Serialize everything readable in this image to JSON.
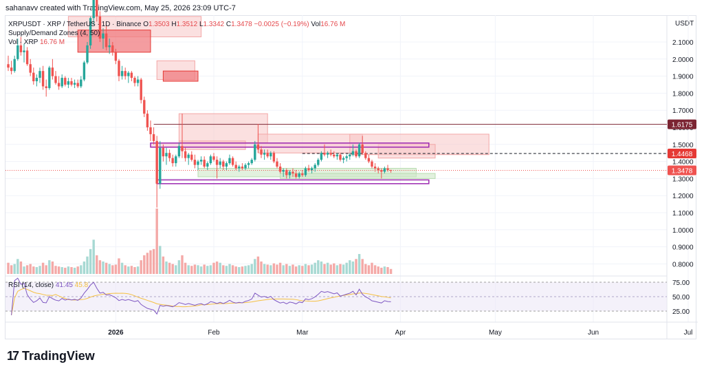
{
  "header": {
    "text": "sahanavv created with TradingView.com, May 25, 2026 23:09 UTC-7"
  },
  "legend": {
    "symbol": "XRPUSDT · XRP / TetherUS · 1D · Binance",
    "o_label": "O",
    "o": "1.3503",
    "h_label": "H",
    "h": "1.3512",
    "l_label": "L",
    "l": "1.3342",
    "c_label": "C",
    "c": "1.3478",
    "change": "−0.0025 (−0.19%)",
    "vol_label": "Vol",
    "vol": "16.76 M",
    "indicator": "Supply/Demand Zones (4, 50)",
    "vol_series": "Vol · XRP",
    "vol_series_value": "16.76 M"
  },
  "rsi_legend": {
    "label": "RSI (14, close)",
    "value": "41.45",
    "ma_value": "45.8"
  },
  "logo": {
    "text": "TradingView",
    "mark": "17"
  },
  "colors": {
    "up": "#26a69a",
    "down": "#ef5350",
    "vol_up": "#a7d9d3",
    "vol_down": "#f4a9a7",
    "rsi": "#7e57c2",
    "rsi_ma": "#f5c042",
    "supply": "#f7c7c7",
    "supply_strong": "#f07c80",
    "demand": "#cfe8c8",
    "zone_line": "#9c27b0"
  },
  "chart_data": {
    "type": "candlestick",
    "currency": "USDT",
    "price_axis": [
      2.1,
      2.0,
      1.9,
      1.8,
      1.7,
      1.6,
      1.5,
      1.4,
      1.3,
      1.2,
      1.1,
      1.0,
      0.9,
      0.8
    ],
    "price_labels": [
      "2.1000",
      "2.0000",
      "1.9000",
      "1.8000",
      "1.7000",
      "1.6000",
      "1.5000",
      "1.4000",
      "1.3000",
      "1.2000",
      "1.1000",
      "1.0000",
      "0.9000",
      "0.8000"
    ],
    "price_tags": [
      {
        "label": "1.6175",
        "value": 1.6175,
        "color": "#7b2432"
      },
      {
        "label": "1.4468",
        "value": 1.4468,
        "color": "#e53935"
      },
      {
        "label": "1.3478",
        "value": 1.3478,
        "color": "#ef5350"
      }
    ],
    "time_axis": [
      {
        "label": "2026",
        "bold": true,
        "index": 34
      },
      {
        "label": "Feb",
        "index": 65
      },
      {
        "label": "Mar",
        "index": 93
      },
      {
        "label": "Apr",
        "index": 124
      },
      {
        "label": "May",
        "index": 154
      },
      {
        "label": "Jun",
        "index": 185
      },
      {
        "label": "Jul",
        "index": 215
      }
    ],
    "ohlc": [
      [
        1.97,
        2.02,
        1.93,
        1.95
      ],
      [
        1.95,
        1.99,
        1.91,
        1.93
      ],
      [
        1.93,
        2.02,
        1.92,
        2.0
      ],
      [
        2.0,
        2.12,
        1.99,
        2.08
      ],
      [
        2.08,
        2.13,
        2.02,
        2.04
      ],
      [
        2.04,
        2.09,
        1.98,
        2.05
      ],
      [
        2.05,
        2.07,
        1.96,
        1.97
      ],
      [
        1.97,
        2.0,
        1.9,
        1.92
      ],
      [
        1.92,
        1.95,
        1.85,
        1.87
      ],
      [
        1.87,
        1.91,
        1.84,
        1.89
      ],
      [
        1.89,
        1.95,
        1.86,
        1.93
      ],
      [
        1.93,
        1.96,
        1.82,
        1.84
      ],
      [
        1.84,
        1.88,
        1.78,
        1.83
      ],
      [
        1.83,
        1.96,
        1.82,
        1.95
      ],
      [
        1.95,
        2.0,
        1.88,
        1.9
      ],
      [
        1.9,
        1.93,
        1.85,
        1.86
      ],
      [
        1.86,
        1.9,
        1.82,
        1.84
      ],
      [
        1.84,
        1.91,
        1.83,
        1.89
      ],
      [
        1.89,
        1.9,
        1.84,
        1.85
      ],
      [
        1.85,
        1.89,
        1.83,
        1.87
      ],
      [
        1.87,
        1.89,
        1.84,
        1.85
      ],
      [
        1.85,
        1.88,
        1.83,
        1.86
      ],
      [
        1.86,
        1.88,
        1.83,
        1.84
      ],
      [
        1.84,
        1.9,
        1.83,
        1.88
      ],
      [
        1.88,
        1.99,
        1.87,
        1.98
      ],
      [
        1.98,
        2.1,
        1.97,
        2.08
      ],
      [
        2.08,
        2.25,
        2.06,
        2.24
      ],
      [
        2.24,
        2.42,
        2.2,
        2.38
      ],
      [
        2.38,
        2.42,
        2.22,
        2.25
      ],
      [
        2.25,
        2.28,
        2.1,
        2.12
      ],
      [
        2.12,
        2.18,
        2.06,
        2.15
      ],
      [
        2.15,
        2.2,
        2.05,
        2.07
      ],
      [
        2.07,
        2.12,
        2.03,
        2.08
      ],
      [
        2.08,
        2.1,
        2.02,
        2.04
      ],
      [
        2.04,
        2.06,
        1.97,
        1.99
      ],
      [
        1.99,
        2.0,
        1.87,
        1.9
      ],
      [
        1.9,
        1.96,
        1.88,
        1.93
      ],
      [
        1.93,
        1.95,
        1.88,
        1.9
      ],
      [
        1.9,
        1.93,
        1.86,
        1.92
      ],
      [
        1.92,
        1.93,
        1.87,
        1.89
      ],
      [
        1.89,
        1.9,
        1.84,
        1.86
      ],
      [
        1.86,
        1.9,
        1.84,
        1.88
      ],
      [
        1.88,
        1.89,
        1.74,
        1.76
      ],
      [
        1.76,
        1.78,
        1.66,
        1.68
      ],
      [
        1.68,
        1.7,
        1.58,
        1.6
      ],
      [
        1.6,
        1.64,
        1.52,
        1.56
      ],
      [
        1.56,
        1.6,
        1.5,
        1.52
      ],
      [
        1.52,
        1.55,
        1.13,
        1.27
      ],
      [
        1.27,
        1.52,
        1.24,
        1.48
      ],
      [
        1.48,
        1.5,
        1.4,
        1.43
      ],
      [
        1.43,
        1.48,
        1.38,
        1.45
      ],
      [
        1.45,
        1.47,
        1.4,
        1.42
      ],
      [
        1.42,
        1.44,
        1.37,
        1.39
      ],
      [
        1.39,
        1.44,
        1.37,
        1.43
      ],
      [
        1.43,
        1.51,
        1.42,
        1.49
      ],
      [
        1.49,
        1.68,
        1.42,
        1.46
      ],
      [
        1.46,
        1.48,
        1.4,
        1.42
      ],
      [
        1.42,
        1.45,
        1.38,
        1.44
      ],
      [
        1.44,
        1.46,
        1.4,
        1.41
      ],
      [
        1.41,
        1.44,
        1.36,
        1.38
      ],
      [
        1.38,
        1.41,
        1.35,
        1.4
      ],
      [
        1.4,
        1.43,
        1.38,
        1.41
      ],
      [
        1.41,
        1.43,
        1.36,
        1.37
      ],
      [
        1.37,
        1.4,
        1.35,
        1.39
      ],
      [
        1.39,
        1.44,
        1.38,
        1.43
      ],
      [
        1.43,
        1.45,
        1.4,
        1.41
      ],
      [
        1.41,
        1.43,
        1.3,
        1.38
      ],
      [
        1.38,
        1.42,
        1.36,
        1.4
      ],
      [
        1.4,
        1.41,
        1.35,
        1.37
      ],
      [
        1.37,
        1.4,
        1.35,
        1.39
      ],
      [
        1.39,
        1.44,
        1.38,
        1.42
      ],
      [
        1.42,
        1.43,
        1.37,
        1.38
      ],
      [
        1.38,
        1.4,
        1.35,
        1.36
      ],
      [
        1.36,
        1.38,
        1.34,
        1.37
      ],
      [
        1.37,
        1.39,
        1.35,
        1.36
      ],
      [
        1.36,
        1.39,
        1.35,
        1.38
      ],
      [
        1.38,
        1.4,
        1.36,
        1.39
      ],
      [
        1.39,
        1.42,
        1.38,
        1.41
      ],
      [
        1.41,
        1.52,
        1.4,
        1.5
      ],
      [
        1.5,
        1.62,
        1.45,
        1.47
      ],
      [
        1.47,
        1.49,
        1.42,
        1.44
      ],
      [
        1.44,
        1.47,
        1.41,
        1.45
      ],
      [
        1.45,
        1.47,
        1.42,
        1.43
      ],
      [
        1.43,
        1.46,
        1.41,
        1.45
      ],
      [
        1.45,
        1.46,
        1.39,
        1.4
      ],
      [
        1.4,
        1.42,
        1.36,
        1.37
      ],
      [
        1.37,
        1.39,
        1.33,
        1.34
      ],
      [
        1.34,
        1.36,
        1.31,
        1.35
      ],
      [
        1.35,
        1.36,
        1.3,
        1.32
      ],
      [
        1.32,
        1.35,
        1.3,
        1.34
      ],
      [
        1.34,
        1.36,
        1.31,
        1.33
      ],
      [
        1.33,
        1.35,
        1.3,
        1.31
      ],
      [
        1.31,
        1.34,
        1.3,
        1.33
      ],
      [
        1.33,
        1.35,
        1.31,
        1.32
      ],
      [
        1.32,
        1.37,
        1.31,
        1.36
      ],
      [
        1.36,
        1.38,
        1.34,
        1.35
      ],
      [
        1.35,
        1.37,
        1.33,
        1.36
      ],
      [
        1.36,
        1.39,
        1.34,
        1.38
      ],
      [
        1.38,
        1.42,
        1.37,
        1.41
      ],
      [
        1.41,
        1.46,
        1.4,
        1.45
      ],
      [
        1.45,
        1.5,
        1.43,
        1.44
      ],
      [
        1.44,
        1.46,
        1.42,
        1.45
      ],
      [
        1.45,
        1.47,
        1.43,
        1.44
      ],
      [
        1.44,
        1.46,
        1.42,
        1.43
      ],
      [
        1.43,
        1.45,
        1.41,
        1.44
      ],
      [
        1.44,
        1.45,
        1.4,
        1.41
      ],
      [
        1.41,
        1.43,
        1.39,
        1.42
      ],
      [
        1.42,
        1.44,
        1.4,
        1.43
      ],
      [
        1.43,
        1.45,
        1.41,
        1.44
      ],
      [
        1.44,
        1.5,
        1.43,
        1.46
      ],
      [
        1.46,
        1.47,
        1.42,
        1.43
      ],
      [
        1.43,
        1.51,
        1.42,
        1.5
      ],
      [
        1.5,
        1.55,
        1.44,
        1.45
      ],
      [
        1.45,
        1.46,
        1.41,
        1.42
      ],
      [
        1.42,
        1.44,
        1.39,
        1.4
      ],
      [
        1.4,
        1.41,
        1.36,
        1.37
      ],
      [
        1.37,
        1.39,
        1.34,
        1.36
      ],
      [
        1.36,
        1.37,
        1.33,
        1.35
      ],
      [
        1.35,
        1.36,
        1.3,
        1.34
      ],
      [
        1.34,
        1.37,
        1.33,
        1.36
      ],
      [
        1.36,
        1.38,
        1.34,
        1.35
      ],
      [
        1.3503,
        1.3512,
        1.3342,
        1.3478
      ]
    ],
    "volume": [
      18,
      14,
      16,
      24,
      20,
      12,
      14,
      16,
      12,
      11,
      13,
      18,
      14,
      22,
      20,
      13,
      12,
      11,
      10,
      12,
      11,
      10,
      12,
      14,
      20,
      28,
      40,
      55,
      30,
      22,
      20,
      18,
      16,
      14,
      15,
      25,
      18,
      14,
      12,
      13,
      11,
      12,
      22,
      30,
      34,
      38,
      40,
      105,
      45,
      28,
      20,
      18,
      16,
      14,
      22,
      30,
      18,
      14,
      13,
      15,
      14,
      12,
      15,
      13,
      14,
      18,
      20,
      18,
      14,
      13,
      16,
      14,
      12,
      11,
      12,
      13,
      14,
      16,
      24,
      28,
      20,
      16,
      15,
      14,
      17,
      15,
      18,
      14,
      16,
      13,
      15,
      12,
      14,
      13,
      16,
      14,
      15,
      18,
      22,
      20,
      16,
      18,
      15,
      17,
      14,
      16,
      15,
      18,
      22,
      20,
      24,
      32,
      24,
      16,
      14,
      18,
      14,
      12,
      10,
      12,
      11,
      8
    ],
    "rsi_axis": [
      75,
      50,
      25
    ],
    "rsi_labels": [
      "75.00",
      "50.00",
      "25.00"
    ],
    "rsi_value": 41.45,
    "rsi_ma_value": 45.8,
    "supply_zones": [
      {
        "start": 19,
        "end": 61,
        "top": 2.25,
        "bottom": 2.13,
        "strong": false
      },
      {
        "start": 22,
        "end": 45,
        "top": 2.17,
        "bottom": 2.04,
        "strong": true
      },
      {
        "start": 47,
        "end": 59,
        "top": 1.99,
        "bottom": 1.88,
        "strong": false
      },
      {
        "start": 49,
        "end": 60,
        "top": 1.93,
        "bottom": 1.87,
        "strong": true
      },
      {
        "start": 54,
        "end": 82,
        "top": 1.68,
        "bottom": 1.51,
        "strong": false
      },
      {
        "start": 54,
        "end": 75,
        "top": 1.52,
        "bottom": 1.47,
        "strong": false
      },
      {
        "start": 79,
        "end": 112,
        "top": 1.56,
        "bottom": 1.45,
        "strong": false
      },
      {
        "start": 108,
        "end": 152,
        "top": 1.56,
        "bottom": 1.44,
        "strong": false
      },
      {
        "start": 117,
        "end": 135,
        "top": 1.5,
        "bottom": 1.42,
        "strong": false
      }
    ],
    "demand_zones": [
      {
        "start": 60,
        "end": 129,
        "top": 1.36,
        "bottom": 1.31
      },
      {
        "start": 86,
        "end": 135,
        "top": 1.33,
        "bottom": 1.3
      }
    ],
    "outlined_zones": [
      {
        "start": 45,
        "end": 133,
        "top": 1.508,
        "bottom": 1.484
      },
      {
        "start": 47,
        "end": 133,
        "top": 1.292,
        "bottom": 1.27
      }
    ],
    "dashed_level": {
      "value": 1.4468,
      "start": 93,
      "end": 160
    },
    "resistance_line": {
      "value": 1.6175,
      "start": 46
    }
  }
}
